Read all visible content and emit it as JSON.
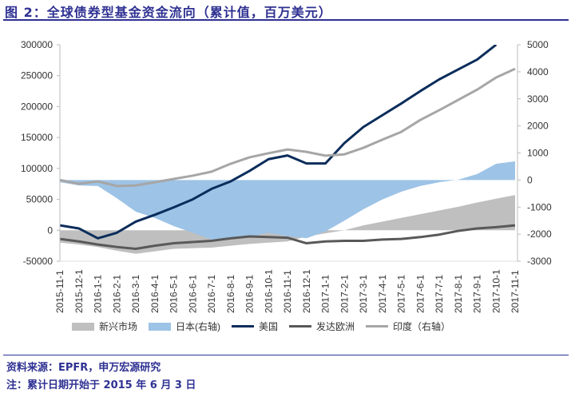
{
  "header": {
    "title": "图 2：全球债券型基金资金流向（累计值，百万美元）"
  },
  "footer": {
    "source": "资料来源：EPFR，申万宏源研究",
    "note": "注：累计日期开始于 2015 年 6 月 3 日"
  },
  "chart_data": {
    "type": "line",
    "title": "",
    "x": [
      "2015-11-1",
      "2015-12-1",
      "2016-1-1",
      "2016-2-1",
      "2016-3-1",
      "2016-4-1",
      "2016-5-1",
      "2016-6-1",
      "2016-7-1",
      "2016-8-1",
      "2016-9-1",
      "2016-10-1",
      "2016-11-1",
      "2016-12-1",
      "2017-1-1",
      "2017-2-1",
      "2017-3-1",
      "2017-4-1",
      "2017-5-1",
      "2017-6-1",
      "2017-7-1",
      "2017-8-1",
      "2017-9-1",
      "2017-10-1",
      "2017-11-1"
    ],
    "y_left": {
      "ylim": [
        -50000,
        300000
      ],
      "ticks": [
        "-50000",
        "0",
        "50000",
        "100000",
        "150000",
        "200000",
        "250000",
        "300000"
      ]
    },
    "y_right": {
      "ylim": [
        -3000,
        5000
      ],
      "ticks": [
        "-3000",
        "-2000",
        "-1000",
        "0",
        "1000",
        "2000",
        "3000",
        "4000",
        "5000"
      ]
    },
    "grid": false,
    "legend_position": "bottom",
    "series": [
      {
        "name": "新兴市场",
        "kind": "area",
        "axis": "left",
        "color": "#bfbfbf",
        "values": [
          -20000,
          -23000,
          -27000,
          -33000,
          -38000,
          -34000,
          -30000,
          -29000,
          -28000,
          -25000,
          -22000,
          -20000,
          -18000,
          -10000,
          -5000,
          0,
          8000,
          14000,
          20000,
          26000,
          32000,
          38000,
          45000,
          51000,
          57000
        ]
      },
      {
        "name": "日本(右轴)",
        "kind": "area",
        "axis": "right",
        "color": "#9dc3e6",
        "values": [
          -80,
          -200,
          -220,
          -670,
          -1170,
          -1400,
          -1700,
          -1950,
          -2200,
          -2200,
          -2100,
          -1950,
          -2080,
          -2150,
          -1900,
          -1500,
          -1080,
          -720,
          -430,
          -220,
          -80,
          10,
          220,
          600,
          690
        ]
      },
      {
        "name": "美国",
        "kind": "line",
        "axis": "left",
        "color": "#0b2d5b",
        "values": [
          8000,
          3000,
          -13000,
          -4000,
          14000,
          25000,
          37000,
          50000,
          67000,
          79000,
          96000,
          115000,
          121000,
          108000,
          108000,
          141000,
          167000,
          186000,
          205000,
          225000,
          244000,
          260000,
          276000,
          300000,
          null
        ]
      },
      {
        "name": "发达欧洲",
        "kind": "line",
        "axis": "left",
        "color": "#595959",
        "values": [
          -14000,
          -18000,
          -23000,
          -27000,
          -30000,
          -25000,
          -21000,
          -19000,
          -17000,
          -13000,
          -10000,
          -11000,
          -12000,
          -21000,
          -18000,
          -17000,
          -17000,
          -15000,
          -14000,
          -11000,
          -7000,
          -1000,
          3000,
          5000,
          8000
        ]
      },
      {
        "name": "印度（右轴）",
        "kind": "line",
        "axis": "right",
        "color": "#a6a6a6",
        "values": [
          0,
          -140,
          -50,
          -220,
          -200,
          -80,
          40,
          160,
          310,
          600,
          840,
          990,
          1130,
          1040,
          900,
          950,
          1190,
          1490,
          1780,
          2220,
          2580,
          2960,
          3340,
          3790,
          4110
        ]
      }
    ]
  }
}
